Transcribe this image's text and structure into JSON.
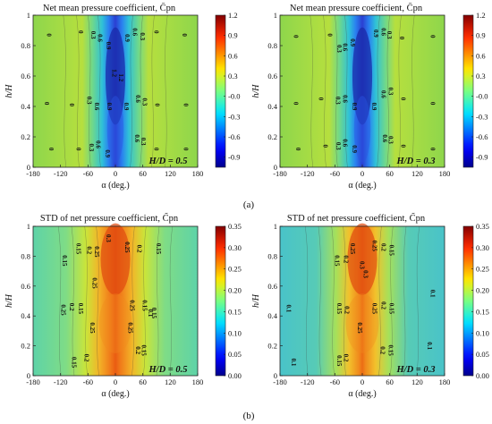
{
  "figure": {
    "panel_labels": [
      "(a)",
      "(b)"
    ]
  },
  "chart_data": [
    {
      "type": "heatmap",
      "title": "Net mean pressure coefficient, C̄pn",
      "xlabel": "α (deg.)",
      "ylabel": "h/H",
      "annotation": "H/D = 0.5",
      "x_ticks": [
        "-180",
        "-120",
        "-60",
        "0",
        "60",
        "120",
        "180"
      ],
      "y_ticks": [
        "0",
        "0.2",
        "0.4",
        "0.6",
        "0.8",
        "1"
      ],
      "xlim": [
        -180,
        180
      ],
      "ylim": [
        0,
        1
      ],
      "colorbar_ticks": [
        "1.2",
        "0.9",
        "0.6",
        "0.3",
        "-0.0",
        "-0.3",
        "-0.6",
        "-0.9"
      ],
      "colorbar_range": [
        -1.05,
        1.2
      ],
      "colormap": "jet",
      "contour_labels": [
        {
          "text": "0",
          "x": -150,
          "y": 0.87
        },
        {
          "text": "0",
          "x": -80,
          "y": 0.89
        },
        {
          "text": "0.3",
          "x": -53,
          "y": 0.87
        },
        {
          "text": "0.6",
          "x": -38,
          "y": 0.85
        },
        {
          "text": "0.9",
          "x": -20,
          "y": 0.8
        },
        {
          "text": "0.9",
          "x": 22,
          "y": 0.85
        },
        {
          "text": "0.6",
          "x": 38,
          "y": 0.89
        },
        {
          "text": "0.3",
          "x": 55,
          "y": 0.86
        },
        {
          "text": "0",
          "x": 85,
          "y": 0.89
        },
        {
          "text": "0",
          "x": 147,
          "y": 0.87
        },
        {
          "text": "1.2",
          "x": -7,
          "y": 0.62
        },
        {
          "text": "1.2",
          "x": 8,
          "y": 0.59
        },
        {
          "text": "0",
          "x": -155,
          "y": 0.42
        },
        {
          "text": "0",
          "x": -100,
          "y": 0.41
        },
        {
          "text": "0.3",
          "x": -62,
          "y": 0.44
        },
        {
          "text": "0.6",
          "x": -45,
          "y": 0.4
        },
        {
          "text": "0.9",
          "x": -18,
          "y": 0.4
        },
        {
          "text": "0.9",
          "x": 20,
          "y": 0.4
        },
        {
          "text": "0.6",
          "x": 45,
          "y": 0.45
        },
        {
          "text": "0.3",
          "x": 60,
          "y": 0.43
        },
        {
          "text": "0",
          "x": 87,
          "y": 0.41
        },
        {
          "text": "0",
          "x": 150,
          "y": 0.41
        },
        {
          "text": "0",
          "x": -145,
          "y": 0.12
        },
        {
          "text": "0",
          "x": -85,
          "y": 0.12
        },
        {
          "text": "0.3",
          "x": -57,
          "y": 0.13
        },
        {
          "text": "0.6",
          "x": -42,
          "y": 0.15
        },
        {
          "text": "0.9",
          "x": -22,
          "y": 0.09
        },
        {
          "text": "0.6",
          "x": 43,
          "y": 0.19
        },
        {
          "text": "0.3",
          "x": 57,
          "y": 0.17
        },
        {
          "text": "0",
          "x": 85,
          "y": 0.12
        },
        {
          "text": "0",
          "x": 150,
          "y": 0.12
        }
      ]
    },
    {
      "type": "heatmap",
      "title": "Net mean pressure coefficient, C̄pn",
      "xlabel": "α (deg.)",
      "ylabel": "h/H",
      "annotation": "H/D = 0.3",
      "x_ticks": [
        "-180",
        "-120",
        "-60",
        "0",
        "60",
        "120",
        "180"
      ],
      "y_ticks": [
        "0",
        "0.2",
        "0.4",
        "0.6",
        "0.8",
        "1"
      ],
      "xlim": [
        -180,
        180
      ],
      "ylim": [
        0,
        1
      ],
      "colorbar_ticks": [
        "1.2",
        "0.9",
        "0.6",
        "0.3",
        "-0.0",
        "-0.3",
        "-0.6",
        "-0.9"
      ],
      "colorbar_range": [
        -1.05,
        1.2
      ],
      "colormap": "jet",
      "contour_labels": [
        {
          "text": "0",
          "x": -150,
          "y": 0.86
        },
        {
          "text": "0",
          "x": -75,
          "y": 0.87
        },
        {
          "text": "0.3",
          "x": -55,
          "y": 0.78
        },
        {
          "text": "0.6",
          "x": -42,
          "y": 0.79
        },
        {
          "text": "0.9",
          "x": -25,
          "y": 0.82
        },
        {
          "text": "0.9",
          "x": 25,
          "y": 0.88
        },
        {
          "text": "0.6",
          "x": 42,
          "y": 0.89
        },
        {
          "text": "0.3",
          "x": 55,
          "y": 0.87
        },
        {
          "text": "0",
          "x": 82,
          "y": 0.85
        },
        {
          "text": "0",
          "x": 150,
          "y": 0.86
        },
        {
          "text": "0",
          "x": -150,
          "y": 0.42
        },
        {
          "text": "0",
          "x": -95,
          "y": 0.45
        },
        {
          "text": "0.3",
          "x": -58,
          "y": 0.44
        },
        {
          "text": "0.6",
          "x": -42,
          "y": 0.45
        },
        {
          "text": "0.9",
          "x": -22,
          "y": 0.4
        },
        {
          "text": "0.9",
          "x": 22,
          "y": 0.4
        },
        {
          "text": "0.6",
          "x": 42,
          "y": 0.48
        },
        {
          "text": "0.3",
          "x": 58,
          "y": 0.5
        },
        {
          "text": "0",
          "x": 85,
          "y": 0.45
        },
        {
          "text": "0",
          "x": 150,
          "y": 0.42
        },
        {
          "text": "0",
          "x": -145,
          "y": 0.12
        },
        {
          "text": "0",
          "x": -85,
          "y": 0.14
        },
        {
          "text": "0.3",
          "x": -57,
          "y": 0.14
        },
        {
          "text": "0.6",
          "x": -42,
          "y": 0.16
        },
        {
          "text": "0.9",
          "x": -22,
          "y": 0.12
        },
        {
          "text": "0.6",
          "x": 45,
          "y": 0.19
        },
        {
          "text": "0.3",
          "x": 58,
          "y": 0.18
        },
        {
          "text": "0",
          "x": 85,
          "y": 0.14
        },
        {
          "text": "0",
          "x": 150,
          "y": 0.12
        }
      ]
    },
    {
      "type": "heatmap",
      "title": "STD of net pressure coefficient, C̃pn",
      "xlabel": "α (deg.)",
      "ylabel": "h/H",
      "annotation": "H/D = 0.5",
      "x_ticks": [
        "-180",
        "-120",
        "-60",
        "0",
        "60",
        "120",
        "180"
      ],
      "y_ticks": [
        "0",
        "0.2",
        "0.4",
        "0.6",
        "0.8",
        "1"
      ],
      "xlim": [
        -180,
        180
      ],
      "ylim": [
        0,
        1
      ],
      "colorbar_ticks": [
        "0.35",
        "0.30",
        "0.25",
        "0.20",
        "0.15",
        "0.10",
        "0.05",
        "0.00"
      ],
      "colorbar_range": [
        0,
        0.35
      ],
      "colormap": "jet",
      "contour_labels": [
        {
          "text": "0.15",
          "x": -85,
          "y": 0.85
        },
        {
          "text": "0.2",
          "x": -62,
          "y": 0.84
        },
        {
          "text": "0.25",
          "x": -45,
          "y": 0.83
        },
        {
          "text": "0.3",
          "x": -20,
          "y": 0.92
        },
        {
          "text": "0.25",
          "x": 22,
          "y": 0.86
        },
        {
          "text": "0.2",
          "x": 48,
          "y": 0.85
        },
        {
          "text": "0.15",
          "x": 90,
          "y": 0.85
        },
        {
          "text": "0.15",
          "x": -115,
          "y": 0.77
        },
        {
          "text": "0.25",
          "x": -50,
          "y": 0.62
        },
        {
          "text": "0.25",
          "x": -118,
          "y": 0.44
        },
        {
          "text": "0.2",
          "x": -100,
          "y": 0.46
        },
        {
          "text": "0.15",
          "x": -80,
          "y": 0.45
        },
        {
          "text": "0.25",
          "x": 32,
          "y": 0.47
        },
        {
          "text": "0.15",
          "x": 60,
          "y": 0.47
        },
        {
          "text": "0.1",
          "x": 72,
          "y": 0.42
        },
        {
          "text": "0.15",
          "x": 80,
          "y": 0.42
        },
        {
          "text": "0.25",
          "x": -55,
          "y": 0.32
        },
        {
          "text": "0.25",
          "x": 28,
          "y": 0.32
        },
        {
          "text": "0.2",
          "x": 45,
          "y": 0.17
        },
        {
          "text": "0.15",
          "x": 58,
          "y": 0.17
        },
        {
          "text": "0.15",
          "x": -95,
          "y": 0.09
        },
        {
          "text": "0.2",
          "x": -68,
          "y": 0.12
        }
      ]
    },
    {
      "type": "heatmap",
      "title": "STD of net pressure coefficient, C̃pn",
      "xlabel": "α (deg.)",
      "ylabel": "h/H",
      "annotation": "H/D = 0.3",
      "x_ticks": [
        "-180",
        "-120",
        "-60",
        "0",
        "60",
        "120",
        "180"
      ],
      "y_ticks": [
        "0",
        "0.2",
        "0.4",
        "0.6",
        "0.8",
        "1"
      ],
      "xlim": [
        -180,
        180
      ],
      "ylim": [
        0,
        1
      ],
      "colorbar_ticks": [
        "0.35",
        "0.30",
        "0.25",
        "0.20",
        "0.15",
        "0.10",
        "0.05",
        "0.00"
      ],
      "colorbar_range": [
        0,
        0.35
      ],
      "colormap": "jet",
      "contour_labels": [
        {
          "text": "0.15",
          "x": -60,
          "y": 0.77
        },
        {
          "text": "0.2",
          "x": -40,
          "y": 0.78
        },
        {
          "text": "0.25",
          "x": -25,
          "y": 0.85
        },
        {
          "text": "0.3",
          "x": -5,
          "y": 0.74
        },
        {
          "text": "0.3",
          "x": 3,
          "y": 0.68
        },
        {
          "text": "0.25",
          "x": 22,
          "y": 0.87
        },
        {
          "text": "0.2",
          "x": 42,
          "y": 0.86
        },
        {
          "text": "0.15",
          "x": 60,
          "y": 0.84
        },
        {
          "text": "0.1",
          "x": -165,
          "y": 0.45
        },
        {
          "text": "0.15",
          "x": -55,
          "y": 0.45
        },
        {
          "text": "0.2",
          "x": -38,
          "y": 0.44
        },
        {
          "text": "0.25",
          "x": 22,
          "y": 0.45
        },
        {
          "text": "0.2",
          "x": 42,
          "y": 0.47
        },
        {
          "text": "0.15",
          "x": 60,
          "y": 0.45
        },
        {
          "text": "0.1",
          "x": 150,
          "y": 0.55
        },
        {
          "text": "0.25",
          "x": -10,
          "y": 0.32
        },
        {
          "text": "0.1",
          "x": -155,
          "y": 0.09
        },
        {
          "text": "0.15",
          "x": -55,
          "y": 0.1
        },
        {
          "text": "0.2",
          "x": -40,
          "y": 0.12
        },
        {
          "text": "0.2",
          "x": 40,
          "y": 0.17
        },
        {
          "text": "0.15",
          "x": 58,
          "y": 0.17
        },
        {
          "text": "0.1",
          "x": 143,
          "y": 0.2
        }
      ]
    }
  ]
}
